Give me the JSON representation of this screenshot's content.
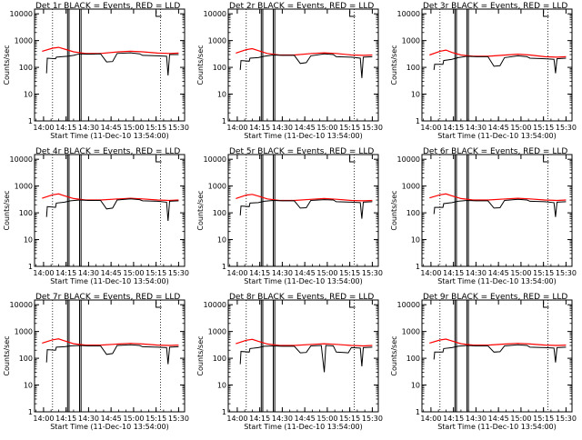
{
  "chart_data": {
    "type": "line",
    "title_suffix": " BLACK = Events, RED = LLD",
    "xlabel": "Start Time (11-Dec-10 13:54:00)",
    "ylabel": "Counts/sec",
    "x_ticks": [
      "14:00",
      "14:15",
      "14:30",
      "14:45",
      "15:00",
      "15:15",
      "15:30"
    ],
    "x_tick_minutes": [
      6,
      21,
      36,
      51,
      66,
      81,
      96
    ],
    "xlim_minutes": [
      0,
      100
    ],
    "y_scale": "log",
    "y_ticks": [
      "1",
      "10",
      "100",
      "1000",
      "10000"
    ],
    "ylim": [
      1,
      15000
    ],
    "series_colors": {
      "events": "#000000",
      "lld": "#ff0000"
    },
    "dotted_markers_minutes": [
      12,
      84
    ],
    "solid_markers_minutes": [
      22,
      23,
      30,
      31
    ],
    "detectors": [
      {
        "label": "Det 1r",
        "events": [
          [
            8,
            60
          ],
          [
            8.5,
            220
          ],
          [
            14,
            210
          ],
          [
            14.5,
            240
          ],
          [
            18,
            250
          ],
          [
            22,
            260
          ],
          [
            26,
            280
          ],
          [
            30,
            320
          ],
          [
            36,
            310
          ],
          [
            44,
            320
          ],
          [
            48,
            160
          ],
          [
            52,
            165
          ],
          [
            55,
            330
          ],
          [
            64,
            350
          ],
          [
            70,
            320
          ],
          [
            72,
            280
          ],
          [
            82,
            270
          ],
          [
            88,
            260
          ],
          [
            89,
            50
          ],
          [
            90,
            300
          ],
          [
            96,
            300
          ]
        ],
        "lld": [
          [
            5,
            400
          ],
          [
            12,
            520
          ],
          [
            16,
            560
          ],
          [
            20,
            480
          ],
          [
            26,
            380
          ],
          [
            34,
            330
          ],
          [
            44,
            330
          ],
          [
            56,
            380
          ],
          [
            64,
            400
          ],
          [
            72,
            380
          ],
          [
            82,
            340
          ],
          [
            90,
            330
          ],
          [
            96,
            340
          ]
        ]
      },
      {
        "label": "Det 2r",
        "events": [
          [
            8,
            80
          ],
          [
            8.5,
            180
          ],
          [
            14,
            170
          ],
          [
            14.5,
            220
          ],
          [
            20,
            230
          ],
          [
            24,
            260
          ],
          [
            30,
            290
          ],
          [
            36,
            280
          ],
          [
            44,
            280
          ],
          [
            48,
            140
          ],
          [
            52,
            150
          ],
          [
            55,
            270
          ],
          [
            64,
            320
          ],
          [
            70,
            300
          ],
          [
            72,
            250
          ],
          [
            82,
            240
          ],
          [
            88,
            220
          ],
          [
            89,
            40
          ],
          [
            90,
            240
          ],
          [
            96,
            250
          ]
        ],
        "lld": [
          [
            5,
            340
          ],
          [
            12,
            460
          ],
          [
            16,
            500
          ],
          [
            20,
            420
          ],
          [
            26,
            330
          ],
          [
            34,
            290
          ],
          [
            44,
            290
          ],
          [
            56,
            330
          ],
          [
            64,
            350
          ],
          [
            72,
            330
          ],
          [
            82,
            290
          ],
          [
            90,
            280
          ],
          [
            96,
            290
          ]
        ]
      },
      {
        "label": "Det 3r",
        "events": [
          [
            8,
            80
          ],
          [
            8.5,
            130
          ],
          [
            14,
            130
          ],
          [
            14.5,
            180
          ],
          [
            20,
            200
          ],
          [
            24,
            230
          ],
          [
            30,
            260
          ],
          [
            36,
            250
          ],
          [
            44,
            250
          ],
          [
            48,
            110
          ],
          [
            52,
            115
          ],
          [
            55,
            230
          ],
          [
            64,
            270
          ],
          [
            70,
            250
          ],
          [
            72,
            220
          ],
          [
            82,
            210
          ],
          [
            88,
            200
          ],
          [
            89,
            60
          ],
          [
            90,
            210
          ],
          [
            96,
            220
          ]
        ],
        "lld": [
          [
            5,
            290
          ],
          [
            12,
            400
          ],
          [
            16,
            440
          ],
          [
            20,
            360
          ],
          [
            26,
            290
          ],
          [
            34,
            260
          ],
          [
            44,
            260
          ],
          [
            56,
            290
          ],
          [
            64,
            310
          ],
          [
            72,
            290
          ],
          [
            82,
            250
          ],
          [
            90,
            240
          ],
          [
            96,
            250
          ]
        ]
      },
      {
        "label": "Det 4r",
        "events": [
          [
            8,
            70
          ],
          [
            8.5,
            170
          ],
          [
            14,
            160
          ],
          [
            14.5,
            230
          ],
          [
            20,
            250
          ],
          [
            24,
            280
          ],
          [
            30,
            300
          ],
          [
            36,
            290
          ],
          [
            44,
            290
          ],
          [
            48,
            140
          ],
          [
            52,
            150
          ],
          [
            55,
            300
          ],
          [
            64,
            330
          ],
          [
            70,
            310
          ],
          [
            72,
            280
          ],
          [
            82,
            270
          ],
          [
            88,
            250
          ],
          [
            89,
            50
          ],
          [
            90,
            270
          ],
          [
            96,
            280
          ]
        ],
        "lld": [
          [
            5,
            350
          ],
          [
            12,
            470
          ],
          [
            16,
            510
          ],
          [
            20,
            430
          ],
          [
            26,
            340
          ],
          [
            34,
            300
          ],
          [
            44,
            300
          ],
          [
            56,
            330
          ],
          [
            64,
            350
          ],
          [
            72,
            330
          ],
          [
            82,
            300
          ],
          [
            90,
            290
          ],
          [
            96,
            300
          ]
        ]
      },
      {
        "label": "Det 5r",
        "events": [
          [
            8,
            80
          ],
          [
            8.5,
            180
          ],
          [
            14,
            170
          ],
          [
            14.5,
            230
          ],
          [
            20,
            240
          ],
          [
            24,
            270
          ],
          [
            30,
            290
          ],
          [
            36,
            280
          ],
          [
            44,
            280
          ],
          [
            48,
            150
          ],
          [
            52,
            155
          ],
          [
            55,
            290
          ],
          [
            64,
            310
          ],
          [
            70,
            300
          ],
          [
            72,
            260
          ],
          [
            82,
            250
          ],
          [
            88,
            240
          ],
          [
            89,
            60
          ],
          [
            90,
            250
          ],
          [
            96,
            260
          ]
        ],
        "lld": [
          [
            5,
            340
          ],
          [
            12,
            460
          ],
          [
            16,
            490
          ],
          [
            20,
            420
          ],
          [
            26,
            330
          ],
          [
            34,
            290
          ],
          [
            44,
            290
          ],
          [
            56,
            320
          ],
          [
            64,
            340
          ],
          [
            72,
            320
          ],
          [
            82,
            290
          ],
          [
            90,
            280
          ],
          [
            96,
            290
          ]
        ]
      },
      {
        "label": "Det 6r",
        "events": [
          [
            8,
            90
          ],
          [
            8.5,
            160
          ],
          [
            14,
            160
          ],
          [
            14.5,
            220
          ],
          [
            20,
            240
          ],
          [
            24,
            270
          ],
          [
            30,
            290
          ],
          [
            36,
            280
          ],
          [
            44,
            280
          ],
          [
            48,
            150
          ],
          [
            52,
            155
          ],
          [
            55,
            290
          ],
          [
            64,
            320
          ],
          [
            70,
            300
          ],
          [
            72,
            270
          ],
          [
            82,
            260
          ],
          [
            88,
            240
          ],
          [
            89,
            70
          ],
          [
            90,
            250
          ],
          [
            96,
            260
          ]
        ],
        "lld": [
          [
            5,
            360
          ],
          [
            12,
            470
          ],
          [
            16,
            510
          ],
          [
            20,
            430
          ],
          [
            26,
            340
          ],
          [
            34,
            300
          ],
          [
            44,
            300
          ],
          [
            56,
            330
          ],
          [
            64,
            350
          ],
          [
            72,
            330
          ],
          [
            82,
            300
          ],
          [
            90,
            290
          ],
          [
            96,
            300
          ]
        ]
      },
      {
        "label": "Det 7r",
        "events": [
          [
            8,
            70
          ],
          [
            8.5,
            210
          ],
          [
            14,
            200
          ],
          [
            14.5,
            260
          ],
          [
            20,
            270
          ],
          [
            24,
            290
          ],
          [
            30,
            300
          ],
          [
            36,
            290
          ],
          [
            44,
            290
          ],
          [
            48,
            140
          ],
          [
            52,
            150
          ],
          [
            55,
            300
          ],
          [
            64,
            320
          ],
          [
            70,
            300
          ],
          [
            72,
            270
          ],
          [
            82,
            260
          ],
          [
            88,
            250
          ],
          [
            89,
            60
          ],
          [
            90,
            260
          ],
          [
            96,
            270
          ]
        ],
        "lld": [
          [
            5,
            370
          ],
          [
            12,
            490
          ],
          [
            16,
            530
          ],
          [
            20,
            450
          ],
          [
            26,
            350
          ],
          [
            34,
            310
          ],
          [
            44,
            310
          ],
          [
            56,
            340
          ],
          [
            64,
            360
          ],
          [
            72,
            340
          ],
          [
            82,
            310
          ],
          [
            90,
            300
          ],
          [
            96,
            310
          ]
        ]
      },
      {
        "label": "Det 8r",
        "events": [
          [
            8,
            60
          ],
          [
            8.5,
            180
          ],
          [
            14,
            170
          ],
          [
            14.5,
            230
          ],
          [
            20,
            250
          ],
          [
            24,
            280
          ],
          [
            30,
            290
          ],
          [
            36,
            280
          ],
          [
            44,
            280
          ],
          [
            48,
            160
          ],
          [
            52,
            165
          ],
          [
            55,
            290
          ],
          [
            62,
            300
          ],
          [
            64,
            30
          ],
          [
            65,
            300
          ],
          [
            70,
            290
          ],
          [
            72,
            170
          ],
          [
            80,
            160
          ],
          [
            82,
            250
          ],
          [
            88,
            240
          ],
          [
            89,
            50
          ],
          [
            90,
            250
          ],
          [
            96,
            260
          ]
        ],
        "lld": [
          [
            5,
            350
          ],
          [
            12,
            470
          ],
          [
            16,
            510
          ],
          [
            20,
            430
          ],
          [
            26,
            340
          ],
          [
            34,
            300
          ],
          [
            44,
            300
          ],
          [
            56,
            330
          ],
          [
            64,
            350
          ],
          [
            72,
            330
          ],
          [
            82,
            300
          ],
          [
            90,
            290
          ],
          [
            96,
            300
          ]
        ]
      },
      {
        "label": "Det 9r",
        "events": [
          [
            8,
            90
          ],
          [
            8.5,
            170
          ],
          [
            14,
            170
          ],
          [
            14.5,
            230
          ],
          [
            20,
            250
          ],
          [
            24,
            280
          ],
          [
            30,
            300
          ],
          [
            36,
            290
          ],
          [
            44,
            290
          ],
          [
            48,
            170
          ],
          [
            52,
            175
          ],
          [
            55,
            290
          ],
          [
            64,
            320
          ],
          [
            70,
            300
          ],
          [
            72,
            260
          ],
          [
            82,
            250
          ],
          [
            88,
            240
          ],
          [
            89,
            70
          ],
          [
            90,
            250
          ],
          [
            96,
            260
          ]
        ],
        "lld": [
          [
            5,
            370
          ],
          [
            12,
            480
          ],
          [
            16,
            520
          ],
          [
            20,
            440
          ],
          [
            26,
            350
          ],
          [
            34,
            310
          ],
          [
            44,
            310
          ],
          [
            56,
            340
          ],
          [
            64,
            360
          ],
          [
            72,
            340
          ],
          [
            82,
            310
          ],
          [
            90,
            300
          ],
          [
            96,
            310
          ]
        ]
      }
    ]
  }
}
